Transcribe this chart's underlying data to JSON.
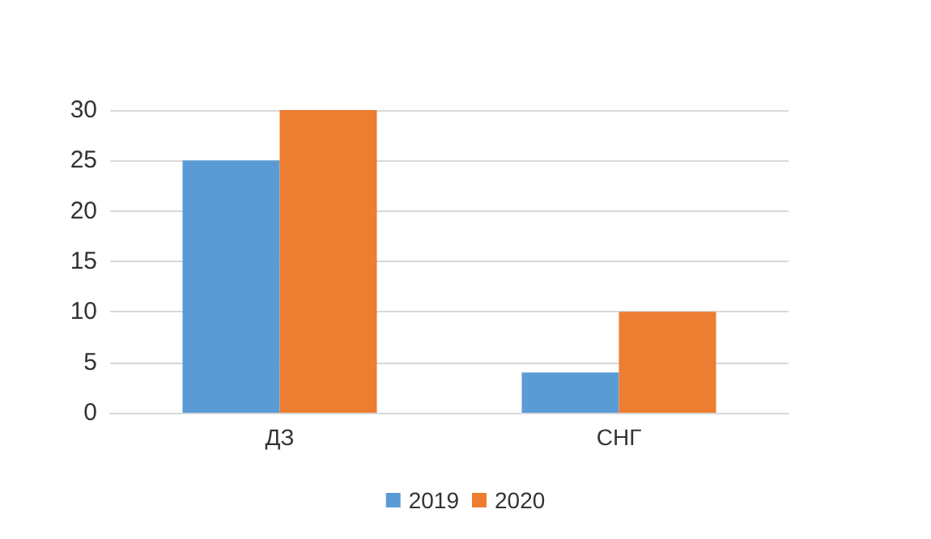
{
  "chart_data": {
    "type": "bar",
    "categories": [
      "ДЗ",
      "СНГ"
    ],
    "series": [
      {
        "name": "2019",
        "color": "#5b9bd5",
        "values": [
          25,
          4
        ]
      },
      {
        "name": "2020",
        "color": "#ed7d31",
        "values": [
          30,
          10
        ]
      }
    ],
    "ylim": [
      0,
      30
    ],
    "yticks": [
      0,
      5,
      10,
      15,
      20,
      25,
      30
    ],
    "grid": "y",
    "legend": "bottom"
  }
}
